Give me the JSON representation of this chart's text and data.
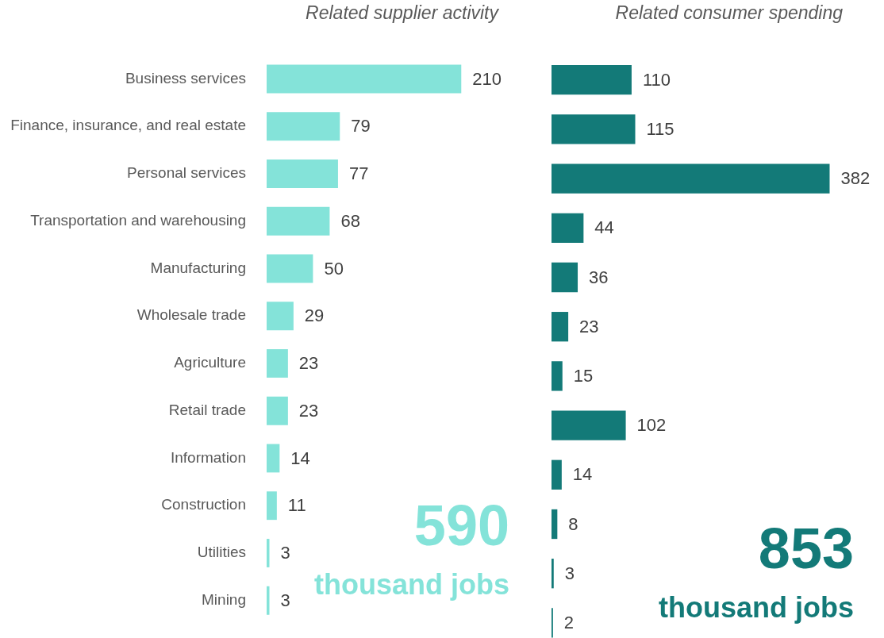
{
  "chart_data": [
    {
      "type": "bar",
      "orientation": "horizontal",
      "title": "Related supplier activity",
      "categories": [
        "Business services",
        "Finance, insurance, and real estate",
        "Personal services",
        "Transportation and warehousing",
        "Manufacturing",
        "Wholesale trade",
        "Agriculture",
        "Retail trade",
        "Information",
        "Construction",
        "Utilities",
        "Mining"
      ],
      "series": [
        {
          "color": "#84e3d9",
          "values": [
            210,
            79,
            77,
            68,
            50,
            29,
            23,
            23,
            14,
            11,
            3,
            3
          ]
        }
      ],
      "tick_labels": "y",
      "data_labels": true,
      "grid": false,
      "legend": false,
      "annotations": [
        "590",
        "thousand jobs"
      ]
    },
    {
      "type": "bar",
      "orientation": "horizontal",
      "title": "Related consumer spending",
      "categories": [
        null,
        null,
        null,
        null,
        null,
        null,
        null,
        null,
        null,
        null,
        null,
        null
      ],
      "series": [
        {
          "color": "#137a78",
          "values": [
            110,
            115,
            382,
            44,
            36,
            23,
            15,
            102,
            14,
            8,
            3,
            2
          ]
        }
      ],
      "tick_labels": false,
      "data_labels": true,
      "grid": false,
      "legend": false,
      "annotations": [
        "853",
        "thousand jobs"
      ]
    }
  ]
}
